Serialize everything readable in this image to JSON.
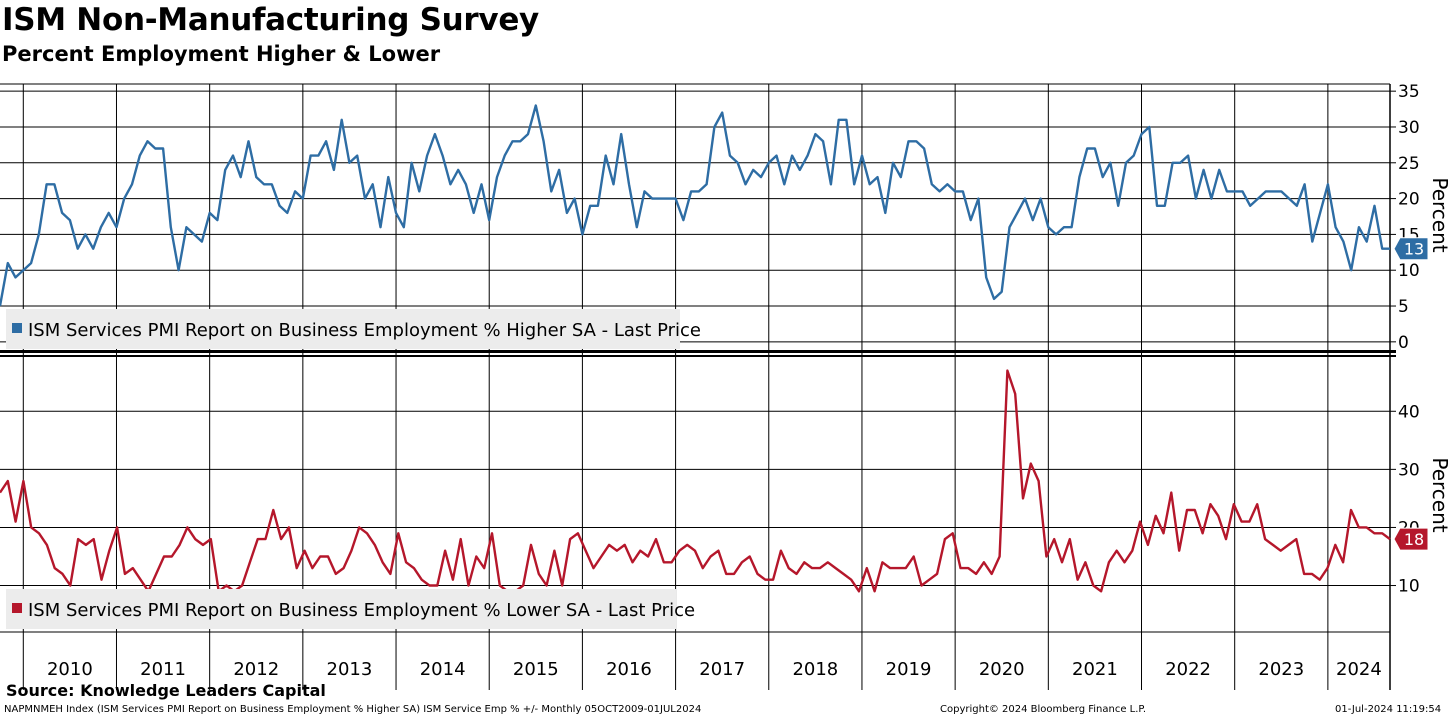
{
  "header": {
    "title": "ISM Non-Manufacturing Survey",
    "subtitle": "Percent Employment Higher & Lower"
  },
  "footer": {
    "source": "Source: Knowledge Leaders Capital",
    "index_note": "NAPMNMEH Index (ISM Services PMI Report on Business Employment % Higher SA) ISM Service Emp % +/-  Monthly 05OCT2009-01JUL2024",
    "copyright": "Copyright© 2024 Bloomberg Finance L.P.",
    "timestamp": "01-Jul-2024 11:19:54"
  },
  "colors": {
    "higher": "#2e6da4",
    "lower": "#b5172b",
    "grid": "#000000",
    "legend_bg": "#ececec"
  },
  "chart_data": [
    {
      "type": "line",
      "panel": "top",
      "ylabel": "Percent",
      "ylim": [
        -1,
        36
      ],
      "yticks": [
        0,
        5,
        10,
        15,
        20,
        25,
        30,
        35
      ],
      "grid": true,
      "x": {
        "start": "2009-10",
        "frequency": "monthly",
        "end": "2024-06"
      },
      "series": [
        {
          "name": "ISM Services PMI Report on Business Employment % Higher SA - Last Price",
          "last_value": 13,
          "last_label": "13",
          "values": [
            5,
            11,
            9,
            10,
            11,
            15,
            22,
            22,
            18,
            17,
            13,
            15,
            13,
            16,
            18,
            16,
            20,
            22,
            26,
            28,
            27,
            27,
            16,
            10,
            16,
            15,
            14,
            18,
            17,
            24,
            26,
            23,
            28,
            23,
            22,
            22,
            19,
            18,
            21,
            20,
            26,
            26,
            28,
            24,
            31,
            25,
            26,
            20,
            22,
            16,
            23,
            18,
            16,
            25,
            21,
            26,
            29,
            26,
            22,
            24,
            22,
            18,
            22,
            17,
            23,
            26,
            28,
            28,
            29,
            33,
            28,
            21,
            24,
            18,
            20,
            15,
            19,
            19,
            26,
            22,
            29,
            22,
            16,
            21,
            20,
            20,
            20,
            20,
            17,
            21,
            21,
            22,
            30,
            32,
            26,
            25,
            22,
            24,
            23,
            25,
            26,
            22,
            26,
            24,
            26,
            29,
            28,
            22,
            31,
            31,
            22,
            26,
            22,
            23,
            18,
            25,
            23,
            28,
            28,
            27,
            22,
            21,
            22,
            21,
            21,
            17,
            20,
            9,
            6,
            7,
            16,
            18,
            20,
            17,
            20,
            16,
            15,
            16,
            16,
            23,
            27,
            27,
            23,
            25,
            19,
            25,
            26,
            29,
            30,
            19,
            19,
            25,
            25,
            26,
            20,
            24,
            20,
            24,
            21,
            21,
            21,
            19,
            20,
            21,
            21,
            21,
            20,
            19,
            22,
            14,
            18,
            22,
            16,
            14,
            10,
            16,
            14,
            19,
            13,
            13
          ]
        }
      ]
    },
    {
      "type": "line",
      "panel": "bottom",
      "ylabel": "Percent",
      "ylim": [
        2,
        49
      ],
      "yticks": [
        10,
        20,
        30,
        40
      ],
      "grid": true,
      "x": {
        "start": "2009-10",
        "frequency": "monthly",
        "end": "2024-06"
      },
      "x_tick_labels": [
        "2010",
        "2011",
        "2012",
        "2013",
        "2014",
        "2015",
        "2016",
        "2017",
        "2018",
        "2019",
        "2020",
        "2021",
        "2022",
        "2023",
        "2024"
      ],
      "series": [
        {
          "name": "ISM Services PMI Report on Business Employment % Lower SA - Last Price",
          "last_value": 18,
          "last_label": "18",
          "values": [
            26,
            28,
            21,
            28,
            20,
            19,
            17,
            13,
            12,
            10,
            18,
            17,
            18,
            11,
            16,
            20,
            12,
            13,
            11,
            9,
            12,
            15,
            15,
            17,
            20,
            18,
            17,
            18,
            9,
            10,
            9,
            10,
            14,
            18,
            18,
            23,
            18,
            20,
            13,
            16,
            13,
            15,
            15,
            12,
            13,
            16,
            20,
            19,
            17,
            14,
            12,
            19,
            14,
            13,
            11,
            10,
            10,
            16,
            11,
            18,
            10,
            15,
            13,
            19,
            10,
            9,
            9,
            10,
            17,
            12,
            10,
            16,
            10,
            18,
            19,
            16,
            13,
            15,
            17,
            16,
            17,
            14,
            16,
            15,
            18,
            14,
            14,
            16,
            17,
            16,
            13,
            15,
            16,
            12,
            12,
            14,
            15,
            12,
            11,
            11,
            16,
            13,
            12,
            14,
            13,
            13,
            14,
            13,
            12,
            11,
            9,
            13,
            9,
            14,
            13,
            13,
            13,
            15,
            10,
            11,
            12,
            18,
            19,
            13,
            13,
            12,
            14,
            12,
            15,
            47,
            43,
            25,
            31,
            28,
            15,
            18,
            14,
            18,
            11,
            14,
            10,
            9,
            14,
            16,
            14,
            16,
            21,
            17,
            22,
            19,
            26,
            16,
            23,
            23,
            19,
            24,
            22,
            18,
            24,
            21,
            21,
            24,
            18,
            17,
            16,
            17,
            18,
            12,
            12,
            11,
            13,
            17,
            14,
            23,
            20,
            20,
            19,
            19,
            18
          ]
        }
      ]
    }
  ]
}
